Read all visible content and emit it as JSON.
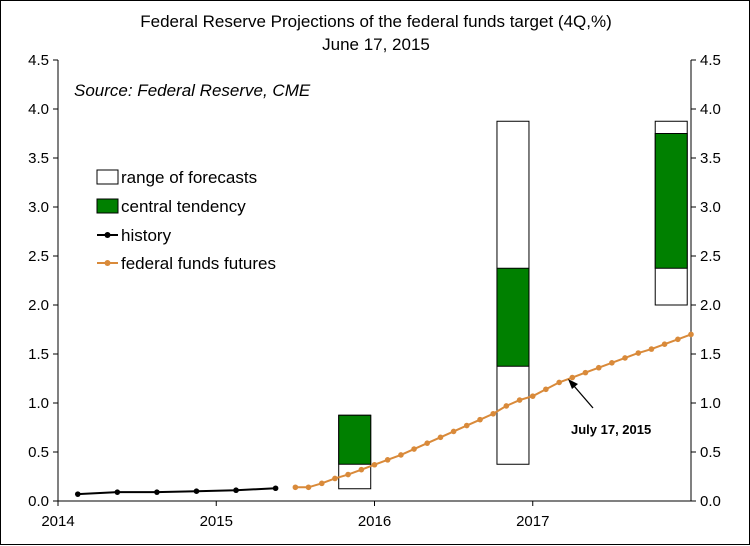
{
  "chart_data": {
    "type": "bar",
    "title": "Federal Reserve Projections of the federal funds target (4Q,%)",
    "subtitle": "June 17, 2015",
    "source": "Source: Federal Reserve, CME",
    "xlabel": "",
    "ylabel": "",
    "ylim": [
      0,
      4.5
    ],
    "yticks": [
      "0.0",
      "0.5",
      "1.0",
      "1.5",
      "2.0",
      "2.5",
      "3.0",
      "3.5",
      "4.0",
      "4.5"
    ],
    "xlim": [
      2014.0,
      2018.0
    ],
    "xticks": [
      {
        "value": 2014,
        "label": "2014"
      },
      {
        "value": 2015,
        "label": "2015"
      },
      {
        "value": 2016,
        "label": "2016"
      },
      {
        "value": 2017,
        "label": "2017"
      }
    ],
    "grid": false,
    "legend_position": "left",
    "legend": {
      "range": "range of forecasts",
      "central": "central tendency",
      "history": "history",
      "futures": "federal funds futures"
    },
    "projections": [
      {
        "x": 2015.875,
        "range": [
          0.125,
          0.875
        ],
        "central": [
          0.375,
          0.875
        ]
      },
      {
        "x": 2016.875,
        "range": [
          0.375,
          3.875
        ],
        "central": [
          1.375,
          2.375
        ]
      },
      {
        "x": 2017.875,
        "range": [
          2.0,
          3.875
        ],
        "central": [
          2.375,
          3.75
        ]
      }
    ],
    "history": {
      "x": [
        2014.125,
        2014.375,
        2014.625,
        2014.875,
        2015.125,
        2015.375
      ],
      "y": [
        0.07,
        0.09,
        0.09,
        0.1,
        0.11,
        0.13
      ]
    },
    "futures": {
      "x": [
        2015.5,
        2015.583,
        2015.667,
        2015.75,
        2015.833,
        2015.917,
        2016.0,
        2016.083,
        2016.167,
        2016.25,
        2016.333,
        2016.417,
        2016.5,
        2016.583,
        2016.667,
        2016.75,
        2016.833,
        2016.917,
        2017.0,
        2017.083,
        2017.167,
        2017.25,
        2017.333,
        2017.417,
        2017.5,
        2017.583,
        2017.667,
        2017.75,
        2017.833,
        2017.917,
        2018.0
      ],
      "y": [
        0.14,
        0.14,
        0.18,
        0.23,
        0.27,
        0.32,
        0.37,
        0.42,
        0.47,
        0.53,
        0.59,
        0.65,
        0.71,
        0.77,
        0.83,
        0.89,
        0.97,
        1.03,
        1.07,
        1.14,
        1.21,
        1.26,
        1.31,
        1.36,
        1.41,
        1.46,
        1.51,
        1.55,
        1.6,
        1.65,
        1.7
      ]
    },
    "annotation": {
      "text": "July 17, 2015",
      "x": 2017.375,
      "y": 1.33
    },
    "colors": {
      "history": "#000000",
      "futures": "#d98a3a",
      "central": "#008000",
      "range": "#ffffff"
    }
  }
}
